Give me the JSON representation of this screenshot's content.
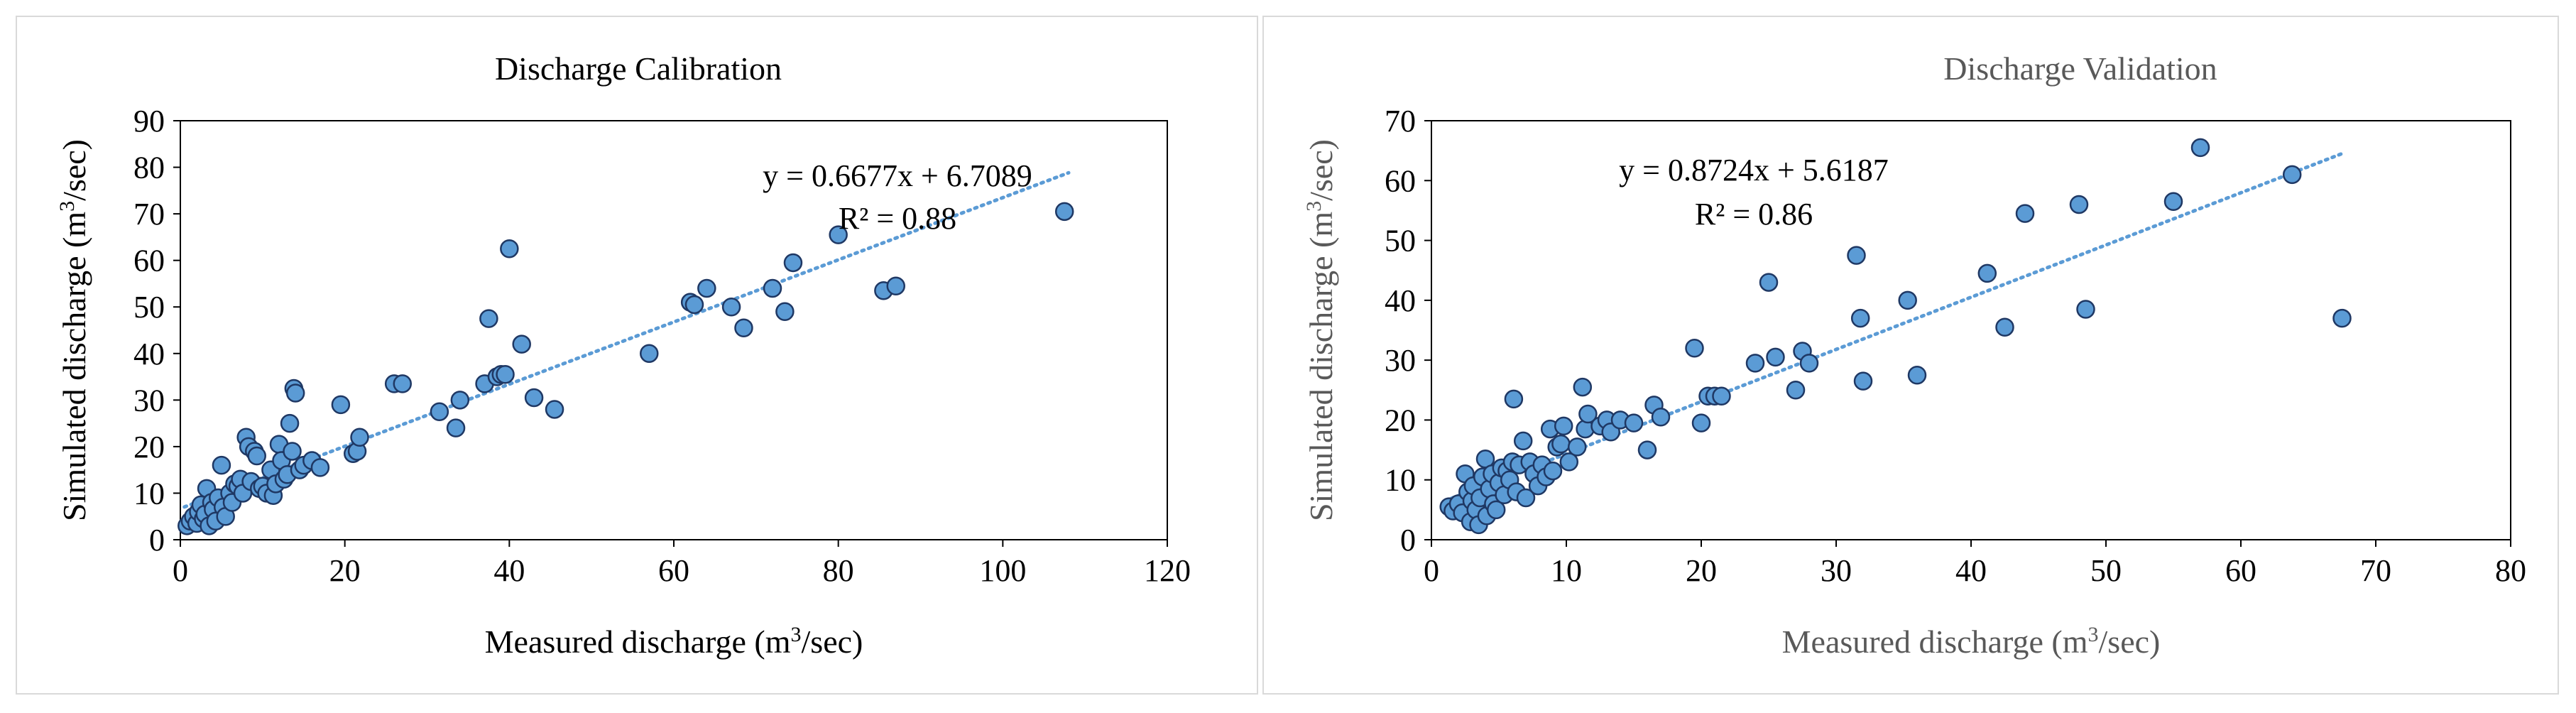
{
  "chart_data": [
    {
      "type": "scatter",
      "title": "Discharge  Calibration",
      "xlabel": "Measured discharge (m³/sec)",
      "ylabel": "Simulated discharge (m³/sec)",
      "xlim": [
        0,
        120
      ],
      "ylim": [
        0,
        90
      ],
      "x_ticks": [
        0,
        20,
        40,
        60,
        80,
        100,
        120
      ],
      "y_ticks": [
        0,
        10,
        20,
        30,
        40,
        50,
        60,
        70,
        80,
        90
      ],
      "grid": false,
      "legend": "none",
      "point_color": "#5b9bd5",
      "trendline": {
        "slope": 0.6677,
        "intercept": 6.7089,
        "x_range": [
          0.5,
          108
        ],
        "color": "#5b9bd5",
        "style": "dotted"
      },
      "equation": "y = 0.6677x + 6.7089",
      "r_squared": "R² = 0.88",
      "points": [
        [
          0.8,
          3
        ],
        [
          1.2,
          4
        ],
        [
          1.6,
          5
        ],
        [
          2,
          3.5
        ],
        [
          2.2,
          6
        ],
        [
          2.5,
          7.5
        ],
        [
          2.8,
          4.5
        ],
        [
          3,
          5.5
        ],
        [
          3.2,
          11
        ],
        [
          3.5,
          3
        ],
        [
          3.8,
          8
        ],
        [
          4,
          6.5
        ],
        [
          4.3,
          4
        ],
        [
          4.6,
          9
        ],
        [
          5,
          16
        ],
        [
          5.2,
          7
        ],
        [
          5.5,
          5
        ],
        [
          6,
          10
        ],
        [
          6.3,
          8
        ],
        [
          6.6,
          12
        ],
        [
          7,
          11.5
        ],
        [
          7.3,
          13
        ],
        [
          7.6,
          10
        ],
        [
          8,
          22
        ],
        [
          8.3,
          20
        ],
        [
          8.6,
          12.5
        ],
        [
          9,
          19
        ],
        [
          9.3,
          18
        ],
        [
          9.6,
          11
        ],
        [
          10,
          11.5
        ],
        [
          10.5,
          10
        ],
        [
          11,
          15
        ],
        [
          11.3,
          9.5
        ],
        [
          11.6,
          12
        ],
        [
          12,
          20.5
        ],
        [
          12.3,
          17
        ],
        [
          12.6,
          13
        ],
        [
          13,
          14
        ],
        [
          13.3,
          25
        ],
        [
          13.6,
          19
        ],
        [
          13.8,
          32.5
        ],
        [
          14,
          31.5
        ],
        [
          14.5,
          15
        ],
        [
          15,
          16
        ],
        [
          16,
          17
        ],
        [
          17,
          15.5
        ],
        [
          19.5,
          29
        ],
        [
          21,
          18.5
        ],
        [
          21.5,
          19
        ],
        [
          21.8,
          22
        ],
        [
          26,
          33.5
        ],
        [
          27,
          33.5
        ],
        [
          31.5,
          27.5
        ],
        [
          33.5,
          24
        ],
        [
          34,
          30
        ],
        [
          37,
          33.5
        ],
        [
          37.5,
          47.5
        ],
        [
          38.5,
          35
        ],
        [
          39,
          35.5
        ],
        [
          39.5,
          35.5
        ],
        [
          40,
          62.5
        ],
        [
          41.5,
          42
        ],
        [
          43,
          30.5
        ],
        [
          45.5,
          28
        ],
        [
          57,
          40
        ],
        [
          62,
          51
        ],
        [
          62.5,
          50.5
        ],
        [
          64,
          54
        ],
        [
          67,
          50
        ],
        [
          68.5,
          45.5
        ],
        [
          72,
          54
        ],
        [
          73.5,
          49
        ],
        [
          74.5,
          59.5
        ],
        [
          80,
          65.5
        ],
        [
          85.5,
          53.5
        ],
        [
          87,
          54.5
        ],
        [
          107.5,
          70.5
        ]
      ]
    },
    {
      "type": "scatter",
      "title": "Discharge  Validation",
      "xlabel": "Measured discharge (m³/sec)",
      "ylabel": "Simulated discharge (m³/sec)",
      "xlim": [
        0,
        80
      ],
      "ylim": [
        0,
        70
      ],
      "x_ticks": [
        0,
        10,
        20,
        30,
        40,
        50,
        60,
        70,
        80
      ],
      "y_ticks": [
        0,
        10,
        20,
        30,
        40,
        50,
        60,
        70
      ],
      "grid": false,
      "legend": "none",
      "point_color": "#5b9bd5",
      "trendline": {
        "slope": 0.8724,
        "intercept": 5.6187,
        "x_range": [
          1,
          67.5
        ],
        "color": "#5b9bd5",
        "style": "dotted"
      },
      "equation": "y = 0.8724x + 5.6187",
      "r_squared": "R² = 0.86",
      "points": [
        [
          1.3,
          5.5
        ],
        [
          1.6,
          4.8
        ],
        [
          2,
          6
        ],
        [
          2.3,
          4.5
        ],
        [
          2.5,
          11
        ],
        [
          2.7,
          8
        ],
        [
          2.9,
          3
        ],
        [
          3,
          6.5
        ],
        [
          3.1,
          9
        ],
        [
          3.3,
          5
        ],
        [
          3.5,
          2.5
        ],
        [
          3.6,
          7
        ],
        [
          3.8,
          10.5
        ],
        [
          4,
          13.5
        ],
        [
          4.1,
          4
        ],
        [
          4.3,
          8.5
        ],
        [
          4.5,
          11
        ],
        [
          4.6,
          6
        ],
        [
          4.8,
          5
        ],
        [
          5,
          9.5
        ],
        [
          5.2,
          12
        ],
        [
          5.4,
          7.5
        ],
        [
          5.6,
          11.5
        ],
        [
          5.8,
          10
        ],
        [
          6,
          13
        ],
        [
          6.1,
          23.5
        ],
        [
          6.3,
          8
        ],
        [
          6.5,
          12.5
        ],
        [
          6.8,
          16.5
        ],
        [
          7,
          7
        ],
        [
          7.3,
          13
        ],
        [
          7.6,
          11
        ],
        [
          7.9,
          9
        ],
        [
          8.2,
          12.5
        ],
        [
          8.5,
          10.5
        ],
        [
          8.8,
          18.5
        ],
        [
          9,
          11.5
        ],
        [
          9.3,
          15.5
        ],
        [
          9.6,
          16
        ],
        [
          9.8,
          19
        ],
        [
          10.2,
          13
        ],
        [
          10.8,
          15.5
        ],
        [
          11.2,
          25.5
        ],
        [
          11.4,
          18.5
        ],
        [
          11.6,
          21
        ],
        [
          12.5,
          19
        ],
        [
          13,
          20
        ],
        [
          13.3,
          18
        ],
        [
          14,
          20
        ],
        [
          15,
          19.5
        ],
        [
          16,
          15
        ],
        [
          16.5,
          22.5
        ],
        [
          17,
          20.5
        ],
        [
          19.5,
          32
        ],
        [
          20,
          19.5
        ],
        [
          20.5,
          24
        ],
        [
          21,
          24
        ],
        [
          21.5,
          24
        ],
        [
          24,
          29.5
        ],
        [
          25,
          43
        ],
        [
          25.5,
          30.5
        ],
        [
          27,
          25
        ],
        [
          27.5,
          31.5
        ],
        [
          28,
          29.5
        ],
        [
          31.5,
          47.5
        ],
        [
          31.8,
          37
        ],
        [
          32,
          26.5
        ],
        [
          35.3,
          40
        ],
        [
          36,
          27.5
        ],
        [
          41.2,
          44.5
        ],
        [
          42.5,
          35.5
        ],
        [
          44,
          54.5
        ],
        [
          48,
          56
        ],
        [
          48.5,
          38.5
        ],
        [
          55,
          56.5
        ],
        [
          57,
          65.5
        ],
        [
          63.8,
          61
        ],
        [
          67.5,
          37
        ]
      ]
    }
  ]
}
